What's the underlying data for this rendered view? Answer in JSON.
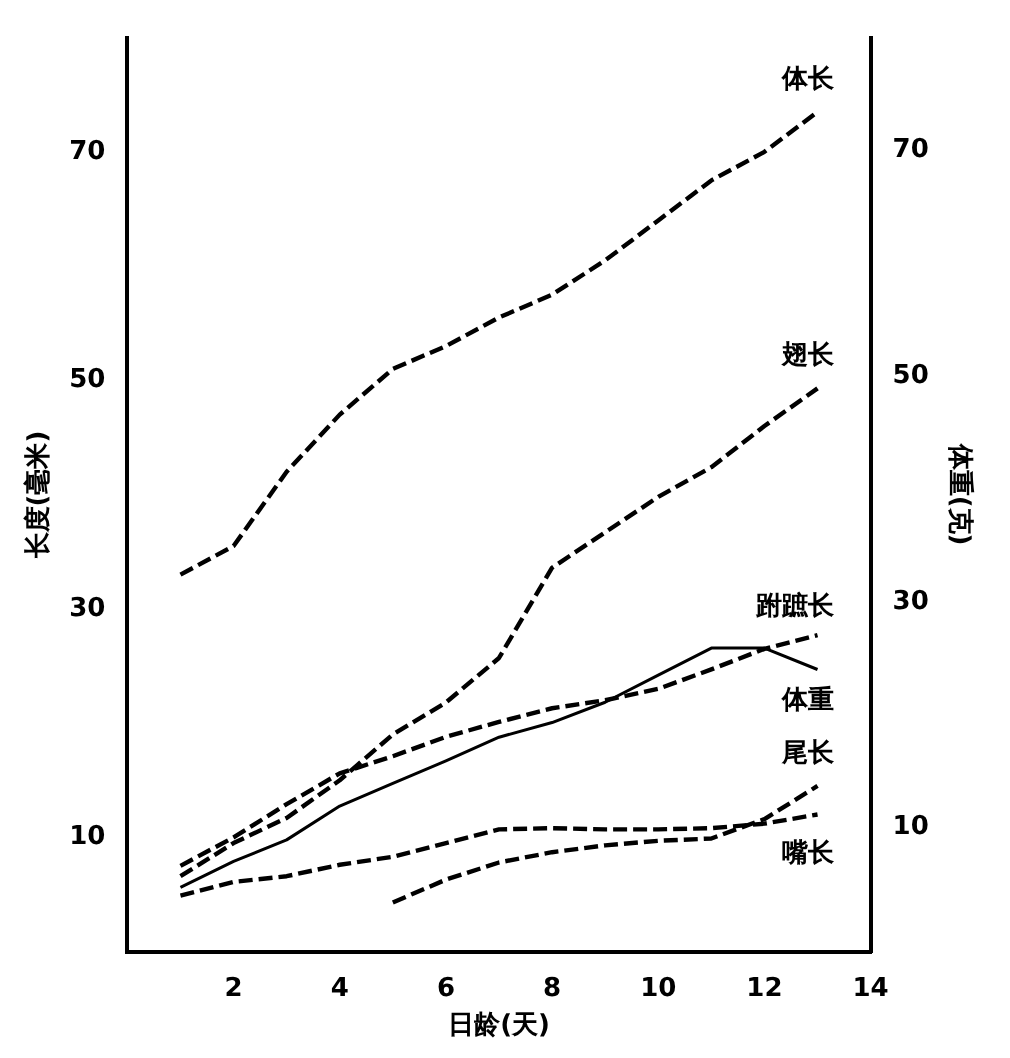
{
  "chart_data": {
    "type": "line",
    "xlabel": "日龄(天)",
    "ylabel": "长度(毫米)",
    "y2label": "体重(克)",
    "xlim": [
      0,
      14
    ],
    "xticks": [
      2,
      4,
      6,
      8,
      10,
      12,
      14
    ],
    "ylim": [
      0,
      80
    ],
    "yticks": [
      10,
      30,
      50,
      70
    ],
    "y2lim": [
      -1,
      80
    ],
    "y2ticks": [
      10,
      30,
      50,
      70
    ],
    "grid": false,
    "legend": false,
    "series": [
      {
        "name": "体长",
        "color": "#000000",
        "line_style": "dashed",
        "x": [
          1,
          2,
          3,
          4,
          5,
          6,
          7,
          8,
          9,
          10,
          11,
          12,
          13
        ],
        "values": [
          33,
          35.5,
          42,
          47,
          51,
          53,
          55.5,
          57.5,
          60.5,
          64,
          67.5,
          70,
          73.5
        ]
      },
      {
        "name": "翅长",
        "color": "#000000",
        "line_style": "dashed",
        "x": [
          1,
          2,
          3,
          4,
          5,
          6,
          7,
          8,
          9,
          10,
          11,
          12,
          13
        ],
        "values": [
          6.6,
          9.5,
          11.7,
          15,
          19,
          21.8,
          25.7,
          33.6,
          36.7,
          39.8,
          42.4,
          46,
          49.3
        ]
      },
      {
        "name": "跗蹠长",
        "color": "#000000",
        "line_style": "dashed",
        "x": [
          1,
          2,
          3,
          4,
          5,
          6,
          7,
          8,
          9,
          10,
          11,
          12,
          13
        ],
        "values": [
          7.5,
          10,
          12.9,
          15.6,
          17.1,
          18.8,
          20.1,
          21.3,
          22,
          23,
          24.7,
          26.5,
          27.7
        ]
      },
      {
        "name": "体重",
        "color": "#000000",
        "line_style": "solid",
        "axis": "y2",
        "x": [
          1,
          2,
          3,
          4,
          5,
          6,
          7,
          8,
          9,
          10,
          11,
          12,
          13
        ],
        "values": [
          4.7,
          7,
          8.9,
          11.9,
          13.9,
          15.9,
          18,
          19.3,
          21.1,
          23.5,
          25.9,
          25.9,
          24
        ]
      },
      {
        "name": "尾长",
        "color": "#000000",
        "line_style": "dashed",
        "x": [
          5,
          6,
          7,
          8,
          9,
          10,
          11,
          12,
          13
        ],
        "values": [
          4.3,
          6.3,
          7.8,
          8.7,
          9.3,
          9.7,
          9.9,
          11.6,
          14.5
        ]
      },
      {
        "name": "嘴长",
        "color": "#000000",
        "line_style": "dashed",
        "x": [
          1,
          2,
          3,
          4,
          5,
          6,
          7,
          8,
          9,
          10,
          11,
          12,
          13
        ],
        "values": [
          4.9,
          6.1,
          6.6,
          7.6,
          8.3,
          9.5,
          10.7,
          10.8,
          10.7,
          10.7,
          10.8,
          11.2,
          12
        ]
      }
    ]
  }
}
